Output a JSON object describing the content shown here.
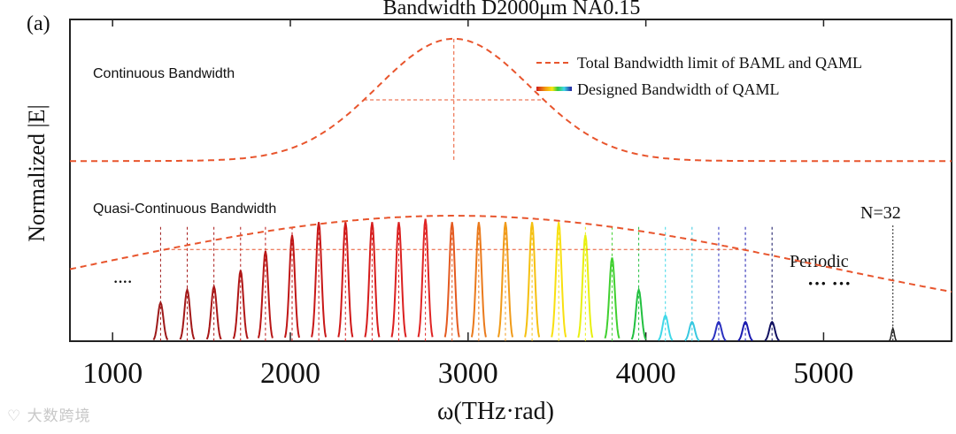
{
  "chart_data": {
    "type": "line",
    "panel_label": "(a)",
    "title": "Bandwidth D2000μm NA0.15",
    "xlabel": "ω(THz·rad)",
    "ylabel": "Normalized |E|",
    "xlim": [
      760,
      5720
    ],
    "ylim": [
      0,
      1
    ],
    "x_ticks": [
      1000,
      2000,
      3000,
      4000,
      5000
    ],
    "x_tick_labels": [
      "1000",
      "2000",
      "3000",
      "4000",
      "5000"
    ],
    "legend_position": "top-right",
    "legend": [
      {
        "label": "Total Bandwidth limit of BAML and QAML",
        "style": "dashed",
        "color": "#e8552d"
      },
      {
        "label": "Designed Bandwidth of QAML",
        "style": "rainbow"
      }
    ],
    "annotations": {
      "continuous": "Continuous Bandwidth",
      "quasi": "Quasi-Continuous Bandwidth",
      "n_label": "N=32",
      "periodic": "Periodic",
      "dots_left": "····",
      "dots_right": "··· ···"
    },
    "continuous_envelope": {
      "center": 2920,
      "sigma": 430,
      "baseline": 0.56,
      "peak": 0.94,
      "fwhm_level": 0.75
    },
    "quasi_envelope": {
      "center": 2920,
      "sigma": 2050,
      "peak": 0.39,
      "fwhm_level": 0.285
    },
    "peaks": {
      "x": [
        1270,
        1420,
        1570,
        1720,
        1860,
        2010,
        2160,
        2310,
        2460,
        2610,
        2760,
        2910,
        3060,
        3210,
        3360,
        3510,
        3660,
        3810,
        3960,
        4110,
        4260,
        4410,
        4560,
        4710
      ],
      "height": [
        0.12,
        0.16,
        0.17,
        0.22,
        0.28,
        0.33,
        0.37,
        0.37,
        0.37,
        0.37,
        0.38,
        0.37,
        0.37,
        0.37,
        0.37,
        0.37,
        0.33,
        0.26,
        0.16,
        0.08,
        0.06,
        0.06,
        0.06,
        0.06
      ],
      "color": [
        "#9e1a1a",
        "#a31818",
        "#a81616",
        "#b01616",
        "#b81616",
        "#c01616",
        "#c81818",
        "#d01818",
        "#d61c1c",
        "#db2020",
        "#e02424",
        "#e45a20",
        "#ea7a1c",
        "#f09a18",
        "#f5c010",
        "#f8e010",
        "#e8f010",
        "#40d030",
        "#22c040",
        "#40d8e8",
        "#38c8e0",
        "#2a30c0",
        "#1a1ab0",
        "#101060"
      ],
      "guide_top": 0.33
    },
    "far_peak": {
      "x": 5390,
      "height": 0.04,
      "guide_top": 0.36,
      "color": "#222222"
    }
  },
  "watermark": "大数跨境"
}
